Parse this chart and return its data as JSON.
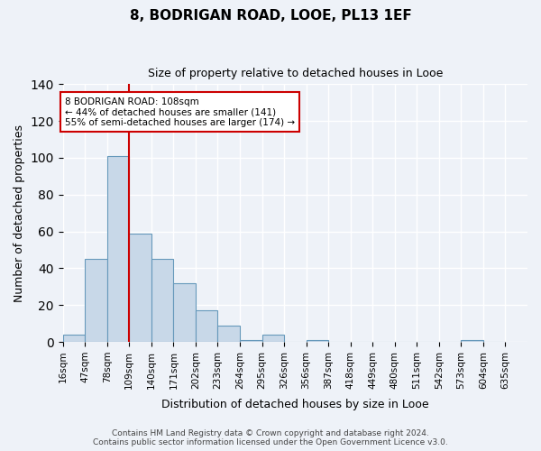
{
  "title": "8, BODRIGAN ROAD, LOOE, PL13 1EF",
  "subtitle": "Size of property relative to detached houses in Looe",
  "xlabel": "Distribution of detached houses by size in Looe",
  "ylabel": "Number of detached properties",
  "footer": "Contains HM Land Registry data © Crown copyright and database right 2024.\nContains public sector information licensed under the Open Government Licence v3.0.",
  "bin_labels": [
    "16sqm",
    "47sqm",
    "78sqm",
    "109sqm",
    "140sqm",
    "171sqm",
    "202sqm",
    "233sqm",
    "264sqm",
    "295sqm",
    "326sqm",
    "356sqm",
    "387sqm",
    "418sqm",
    "449sqm",
    "480sqm",
    "511sqm",
    "542sqm",
    "573sqm",
    "604sqm",
    "635sqm"
  ],
  "bar_values": [
    4,
    45,
    101,
    59,
    45,
    32,
    17,
    9,
    1,
    4,
    0,
    1,
    0,
    0,
    0,
    0,
    0,
    0,
    1,
    0
  ],
  "bar_color": "#c8d8e8",
  "bar_edge_color": "#6699bb",
  "vline_x_index": 3,
  "vline_color": "#cc0000",
  "annotation_text": "8 BODRIGAN ROAD: 108sqm\n← 44% of detached houses are smaller (141)\n55% of semi-detached houses are larger (174) →",
  "annotation_box_color": "white",
  "annotation_box_edge_color": "#cc0000",
  "ylim": [
    0,
    140
  ],
  "yticks": [
    0,
    20,
    40,
    60,
    80,
    100,
    120,
    140
  ],
  "background_color": "#eef2f8",
  "grid_color": "white"
}
